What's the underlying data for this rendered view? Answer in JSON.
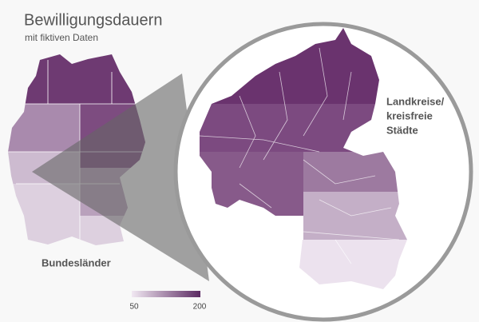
{
  "title": "Bewilligungsdauern",
  "subtitle": "mit fiktiven Daten",
  "labels": {
    "country": "Bundesländer",
    "detail": [
      "Landkreise/",
      "kreisfreie",
      "Städte"
    ]
  },
  "legend": {
    "min": 50,
    "max": 200
  }
}
